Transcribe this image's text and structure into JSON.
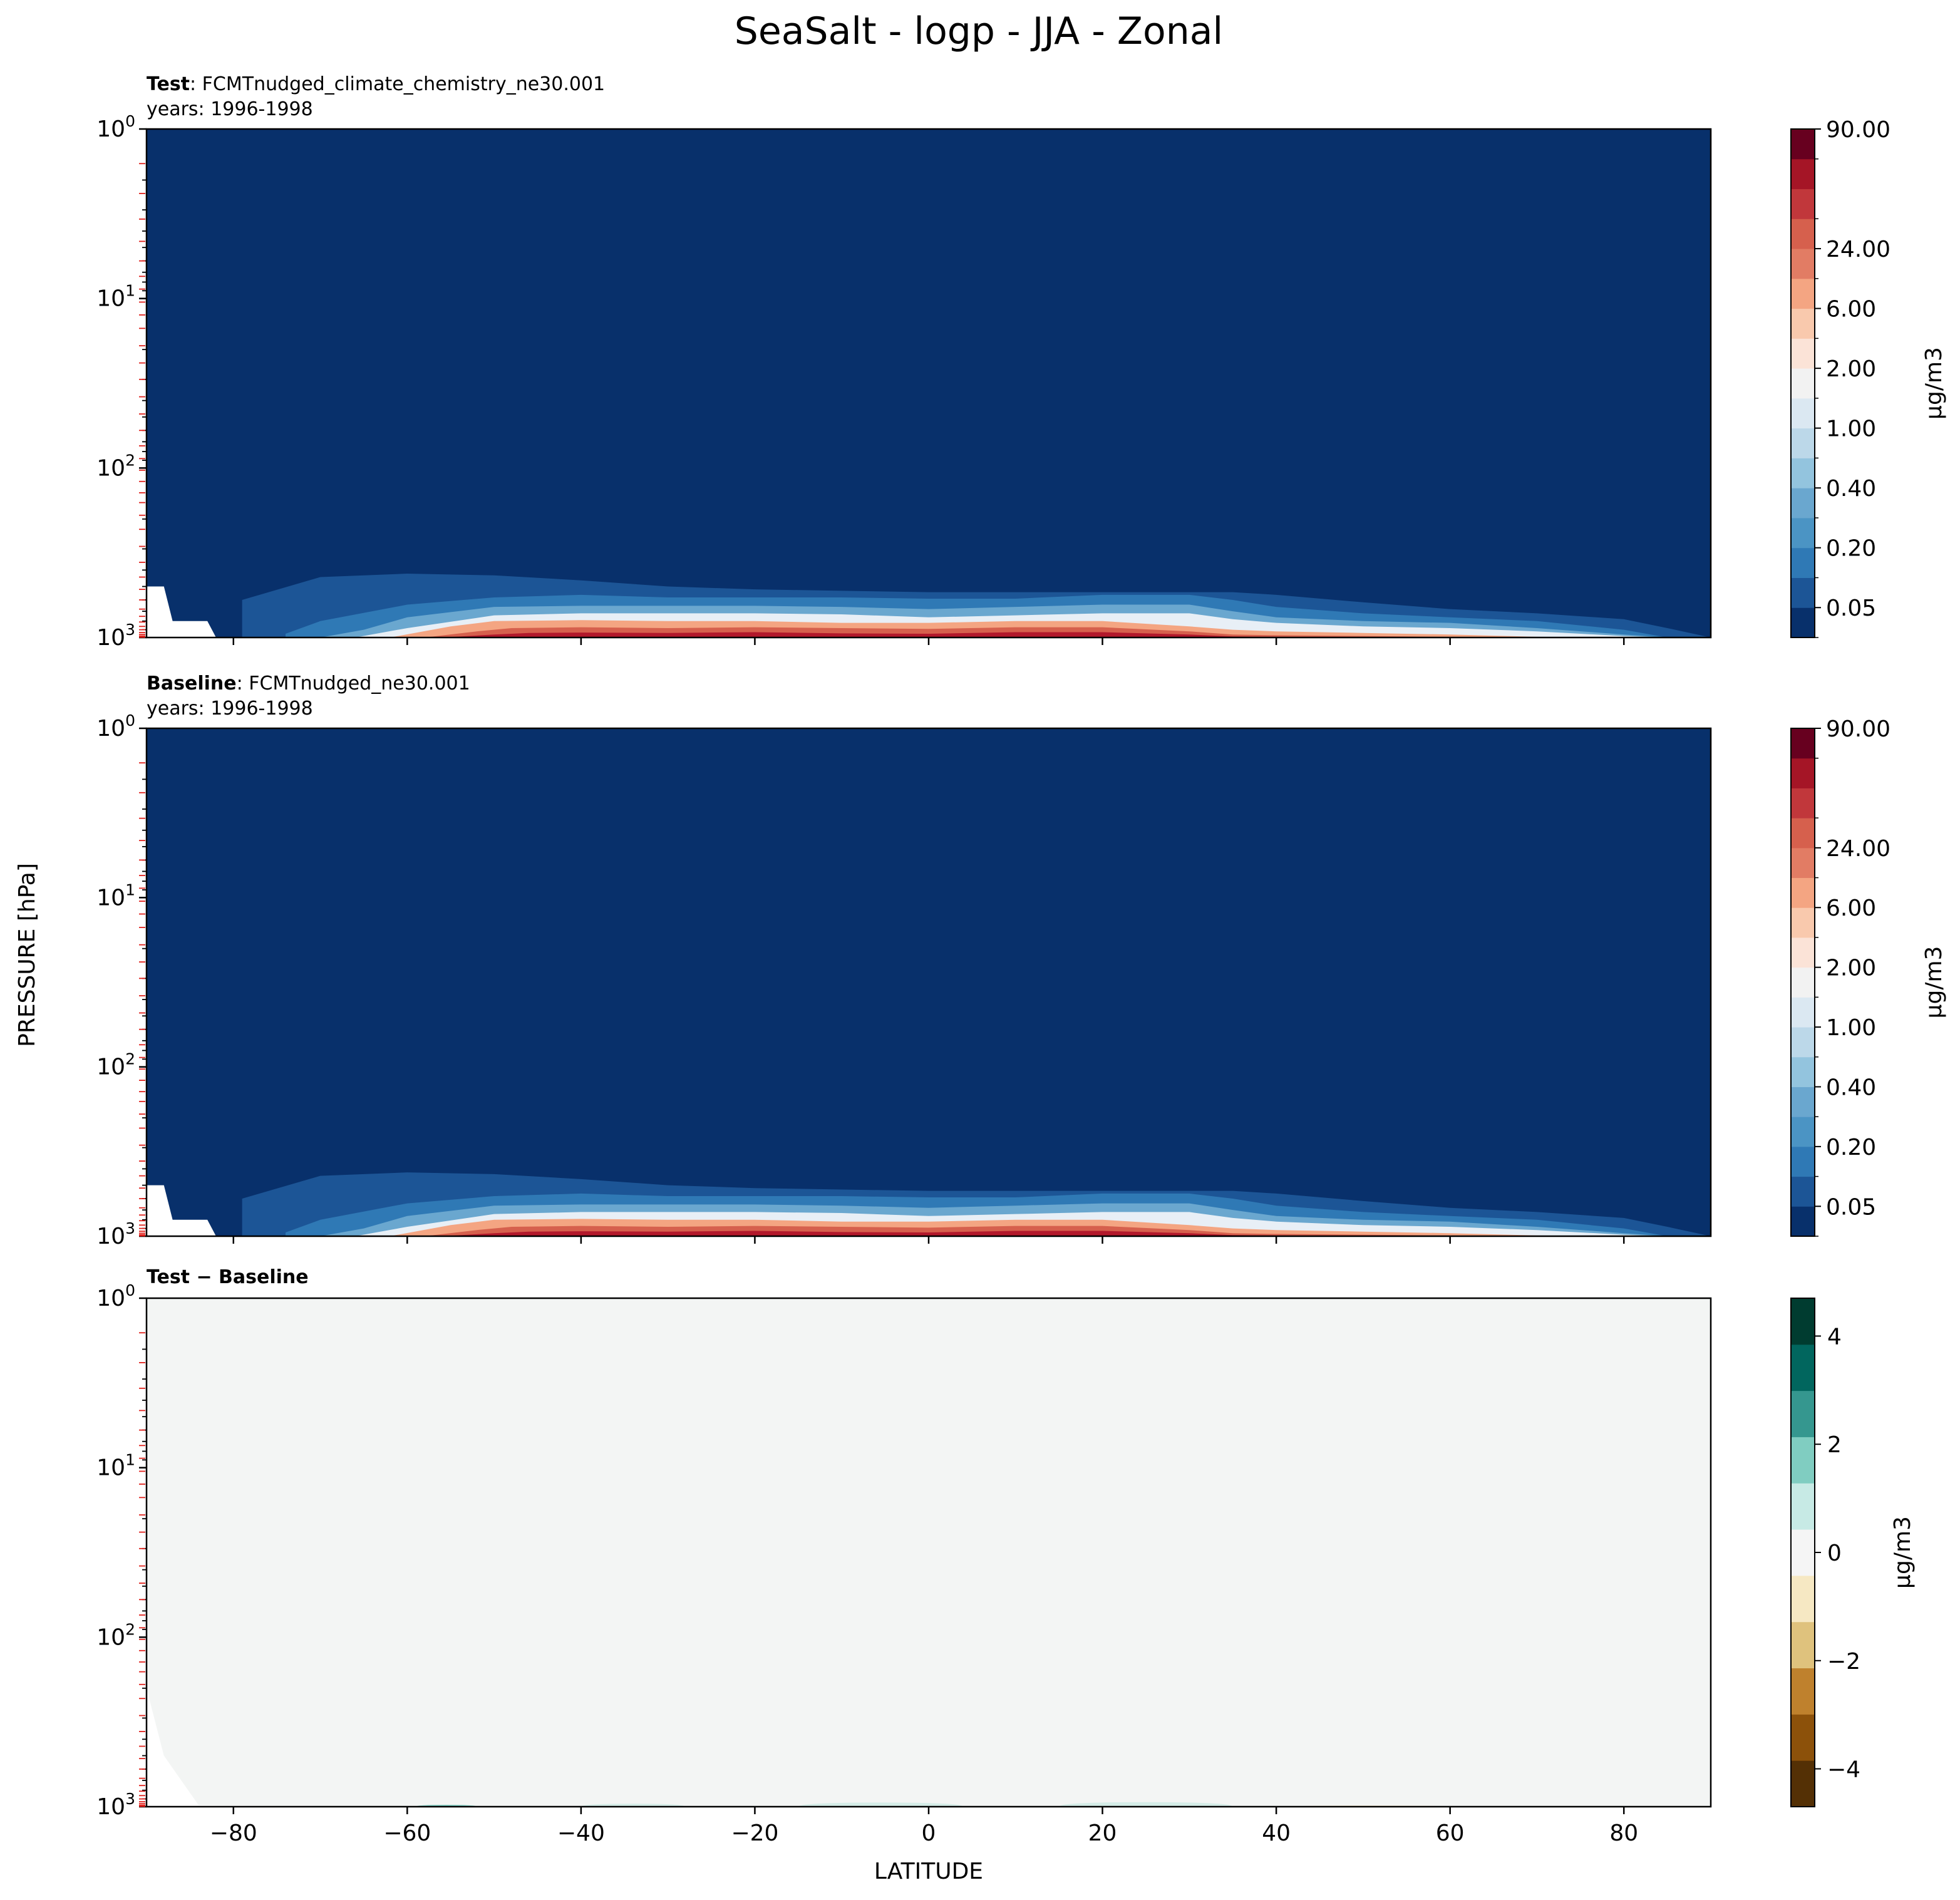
{
  "figure": {
    "title": "SeaSalt - logp - JJA - Zonal",
    "ylabel": "PRESSURE [hPa]",
    "xlabel": "LATITUDE",
    "xticks": [
      -80,
      -60,
      -40,
      -20,
      0,
      20,
      40,
      60,
      80
    ],
    "xtick_labels": [
      "−80",
      "−60",
      "−40",
      "−20",
      "0",
      "20",
      "40",
      "60",
      "80"
    ],
    "xlim": [
      -90,
      90
    ],
    "ylim_hPa": [
      1000,
      1
    ],
    "yscale": "log",
    "ytick_values": [
      1,
      10,
      100,
      1000
    ],
    "ytick_base": "10",
    "ytick_exponents": [
      "0",
      "1",
      "2",
      "3"
    ]
  },
  "chart_data": [
    {
      "type": "heatmap",
      "panel": "test",
      "label_bold": "Test",
      "label_rest": ": FCMTnudged_climate_chemistry_ne30.001",
      "years_line": "years: 1996-1998",
      "colormap": "RdBu_r",
      "colorbar_label": "μg/m3",
      "colorbar_tick_labels": [
        "0.05",
        "0.20",
        "0.40",
        "1.00",
        "2.00",
        "6.00",
        "24.00",
        "90.00"
      ],
      "background": "#08306b",
      "boundary_layer": [
        {
          "level": 1,
          "color": "#1c5596",
          "top_hpa": [
            600,
            440,
            420,
            430,
            460,
            500,
            520,
            530,
            540,
            540,
            540,
            540,
            540,
            560,
            620,
            680,
            720,
            780,
            880,
            1000
          ],
          "x": [
            -79,
            -70,
            -60,
            -50,
            -40,
            -30,
            -20,
            -10,
            0,
            10,
            20,
            30,
            35,
            40,
            50,
            60,
            70,
            80,
            85,
            90
          ]
        },
        {
          "level": 2,
          "color": "#2f79b5",
          "top_hpa": [
            950,
            800,
            640,
            580,
            560,
            580,
            580,
            580,
            590,
            590,
            560,
            560,
            600,
            660,
            720,
            760,
            800,
            900,
            1000,
            1000
          ],
          "x": [
            -74,
            -70,
            -60,
            -50,
            -40,
            -30,
            -20,
            -10,
            0,
            10,
            20,
            30,
            35,
            40,
            50,
            60,
            70,
            80,
            85,
            90
          ]
        },
        {
          "level": 3,
          "color": "#6aa7cf",
          "top_hpa": [
            1000,
            900,
            760,
            660,
            650,
            650,
            650,
            660,
            680,
            660,
            640,
            640,
            700,
            760,
            800,
            820,
            880,
            960,
            1000,
            1000
          ],
          "x": [
            -70,
            -65,
            -60,
            -50,
            -40,
            -30,
            -20,
            -10,
            0,
            10,
            20,
            30,
            35,
            40,
            50,
            60,
            70,
            80,
            85,
            90
          ]
        },
        {
          "level": 4,
          "color": "#e8eff6",
          "top_hpa": [
            1000,
            880,
            740,
            720,
            720,
            720,
            730,
            760,
            740,
            720,
            720,
            780,
            820,
            860,
            880,
            920,
            980,
            1000,
            1000,
            1000
          ],
          "x": [
            -66,
            -60,
            -50,
            -40,
            -30,
            -20,
            -10,
            0,
            10,
            20,
            30,
            35,
            40,
            50,
            60,
            70,
            80,
            85,
            88,
            90
          ]
        },
        {
          "level": 5,
          "color": "#f4a582",
          "top_hpa": [
            1000,
            860,
            800,
            790,
            800,
            800,
            820,
            820,
            800,
            800,
            860,
            900,
            920,
            940,
            960,
            990,
            1000,
            1000,
            1000,
            1000
          ],
          "x": [
            -62,
            -55,
            -50,
            -40,
            -30,
            -20,
            -10,
            0,
            10,
            20,
            30,
            35,
            40,
            50,
            60,
            70,
            80,
            85,
            88,
            90
          ]
        },
        {
          "level": 6,
          "color": "#d6604d",
          "top_hpa": [
            1000,
            920,
            880,
            870,
            880,
            870,
            880,
            890,
            870,
            870,
            920,
            960,
            970,
            980,
            990,
            1000,
            1000,
            1000,
            1000,
            1000
          ],
          "x": [
            -58,
            -52,
            -48,
            -40,
            -30,
            -20,
            -10,
            0,
            10,
            20,
            30,
            35,
            40,
            50,
            60,
            70,
            80,
            85,
            88,
            90
          ]
        },
        {
          "level": 7,
          "color": "#b2182b",
          "top_hpa": [
            1000,
            960,
            940,
            935,
            940,
            930,
            945,
            950,
            930,
            930,
            960,
            985,
            990,
            995,
            1000,
            1000,
            1000,
            1000,
            1000,
            1000
          ],
          "x": [
            -56,
            -50,
            -46,
            -40,
            -30,
            -20,
            -10,
            0,
            10,
            20,
            30,
            35,
            40,
            50,
            60,
            70,
            80,
            85,
            88,
            90
          ]
        }
      ]
    },
    {
      "type": "heatmap",
      "panel": "baseline",
      "label_bold": "Baseline",
      "label_rest": ": FCMTnudged_ne30.001",
      "years_line": "years: 1996-1998",
      "colormap": "RdBu_r",
      "colorbar_label": "μg/m3",
      "colorbar_tick_labels": [
        "0.05",
        "0.20",
        "0.40",
        "1.00",
        "2.00",
        "6.00",
        "24.00",
        "90.00"
      ],
      "background": "#08306b"
    },
    {
      "type": "heatmap",
      "panel": "difference",
      "label_bold": "Test − Baseline",
      "colormap": "BrBG",
      "colorbar_label": "μg/m3",
      "colorbar_ticks": [
        -4,
        -2,
        0,
        2,
        4
      ],
      "colorbar_tick_labels": [
        "−4",
        "−2",
        "0",
        "2",
        "4"
      ],
      "colorbar_range": [
        -4.7,
        4.7
      ],
      "background": "#f3f5f4",
      "features": [
        {
          "x": [
            -59,
            -52
          ],
          "top_hpa": 975,
          "color": "#80cdc1"
        },
        {
          "x": [
            -40,
            -28
          ],
          "top_hpa": 960,
          "color": "#d5ede8"
        },
        {
          "x": [
            -15,
            4
          ],
          "top_hpa": 945,
          "color": "#d5ede8"
        },
        {
          "x": [
            15,
            35
          ],
          "top_hpa": 940,
          "color": "#d5ede8"
        },
        {
          "x": [
            42,
            60
          ],
          "top_hpa": 985,
          "color": "#f6e8c3"
        }
      ]
    }
  ],
  "colors": {
    "rdbu_levels": [
      "#08306b",
      "#1c5596",
      "#2f79b5",
      "#4b94c4",
      "#6aa7cf",
      "#93c4de",
      "#bcd8e9",
      "#dbe8f2",
      "#f2f2f2",
      "#fbe3d7",
      "#f9c9ad",
      "#f4a582",
      "#e27c64",
      "#d6604d",
      "#c1373b",
      "#a51526",
      "#67001f"
    ],
    "brbg_levels": [
      "#543005",
      "#8c510a",
      "#bf812d",
      "#dfc27d",
      "#f6e8c3",
      "#f5f5f5",
      "#c7eae5",
      "#80cdc1",
      "#35978f",
      "#01665e",
      "#003c30"
    ]
  }
}
